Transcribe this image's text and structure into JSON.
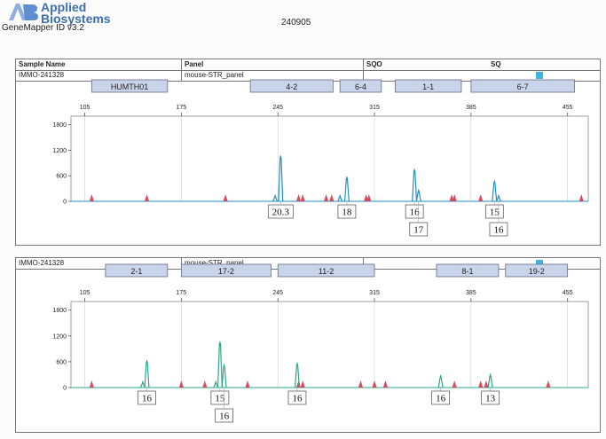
{
  "brand": {
    "name_line1": "Applied",
    "name_line2": "Biosystems",
    "product": "GeneMapper ID v3.2"
  },
  "run_date": "240905",
  "table_headers": {
    "sample_name": "Sample Name",
    "panel": "Panel",
    "sqo": "SQO",
    "sq": "SQ"
  },
  "colors": {
    "blue_trace": "#1f8fc6",
    "green_trace": "#2aa889",
    "size_standard": "#d94a5c",
    "marker_fill": "#c9d3ea",
    "sq_swatch": "#3bb6d6"
  },
  "chart_data": [
    {
      "type": "line",
      "dye": "blue",
      "sample_name": "IMMO-241328",
      "panel": "mouse-STR_panel",
      "x_ticks": [
        105,
        175,
        245,
        315,
        385,
        455
      ],
      "y_ticks": [
        0,
        600,
        1200,
        1800
      ],
      "xlim": [
        95,
        470
      ],
      "ylim": [
        0,
        2000
      ],
      "markers": [
        {
          "name": "HUMTH01",
          "start": 110,
          "end": 165
        },
        {
          "name": "4-2",
          "start": 225,
          "end": 285
        },
        {
          "name": "6-4",
          "start": 290,
          "end": 320
        },
        {
          "name": "1-1",
          "start": 330,
          "end": 378
        },
        {
          "name": "6-7",
          "start": 385,
          "end": 460
        }
      ],
      "peaks": [
        {
          "x": 243,
          "y": 130
        },
        {
          "x": 247,
          "y": 1050
        },
        {
          "x": 290,
          "y": 130
        },
        {
          "x": 295,
          "y": 560
        },
        {
          "x": 344,
          "y": 740
        },
        {
          "x": 347,
          "y": 260
        },
        {
          "x": 402,
          "y": 470
        },
        {
          "x": 405,
          "y": 130
        }
      ],
      "size_standard_x": [
        110,
        150,
        207,
        260,
        263,
        280,
        284,
        309,
        311,
        371,
        373,
        392,
        465
      ],
      "allele_labels": [
        {
          "x": 247,
          "text": "20.3",
          "row": 0
        },
        {
          "x": 295,
          "text": "18",
          "row": 0
        },
        {
          "x": 344,
          "text": "16",
          "row": 0
        },
        {
          "x": 347,
          "text": "17",
          "row": 1
        },
        {
          "x": 402,
          "text": "15",
          "row": 0
        },
        {
          "x": 405,
          "text": "16",
          "row": 1
        }
      ]
    },
    {
      "type": "line",
      "dye": "green",
      "sample_name": "IMMO-241328",
      "panel": "mouse-STR_panel",
      "x_ticks": [
        105,
        175,
        245,
        315,
        385,
        455
      ],
      "y_ticks": [
        0,
        600,
        1200,
        1800
      ],
      "xlim": [
        95,
        470
      ],
      "ylim": [
        0,
        2000
      ],
      "markers": [
        {
          "name": "2-1",
          "start": 120,
          "end": 165
        },
        {
          "name": "17-2",
          "start": 175,
          "end": 240
        },
        {
          "name": "11-2",
          "start": 245,
          "end": 315
        },
        {
          "name": "8-1",
          "start": 360,
          "end": 405
        },
        {
          "name": "19-2",
          "start": 410,
          "end": 455
        }
      ],
      "peaks": [
        {
          "x": 147,
          "y": 130
        },
        {
          "x": 150,
          "y": 620
        },
        {
          "x": 200,
          "y": 130
        },
        {
          "x": 203,
          "y": 1050
        },
        {
          "x": 206,
          "y": 520
        },
        {
          "x": 259,
          "y": 560
        },
        {
          "x": 363,
          "y": 270
        },
        {
          "x": 399,
          "y": 300
        }
      ],
      "size_standard_x": [
        110,
        175,
        192,
        223,
        260,
        263,
        305,
        315,
        323,
        373,
        392,
        396,
        441
      ],
      "allele_labels": [
        {
          "x": 150,
          "text": "16",
          "row": 0
        },
        {
          "x": 203,
          "text": "15",
          "row": 0
        },
        {
          "x": 206,
          "text": "16",
          "row": 1
        },
        {
          "x": 259,
          "text": "16",
          "row": 0
        },
        {
          "x": 363,
          "text": "16",
          "row": 0
        },
        {
          "x": 399,
          "text": "13",
          "row": 0
        }
      ]
    }
  ]
}
